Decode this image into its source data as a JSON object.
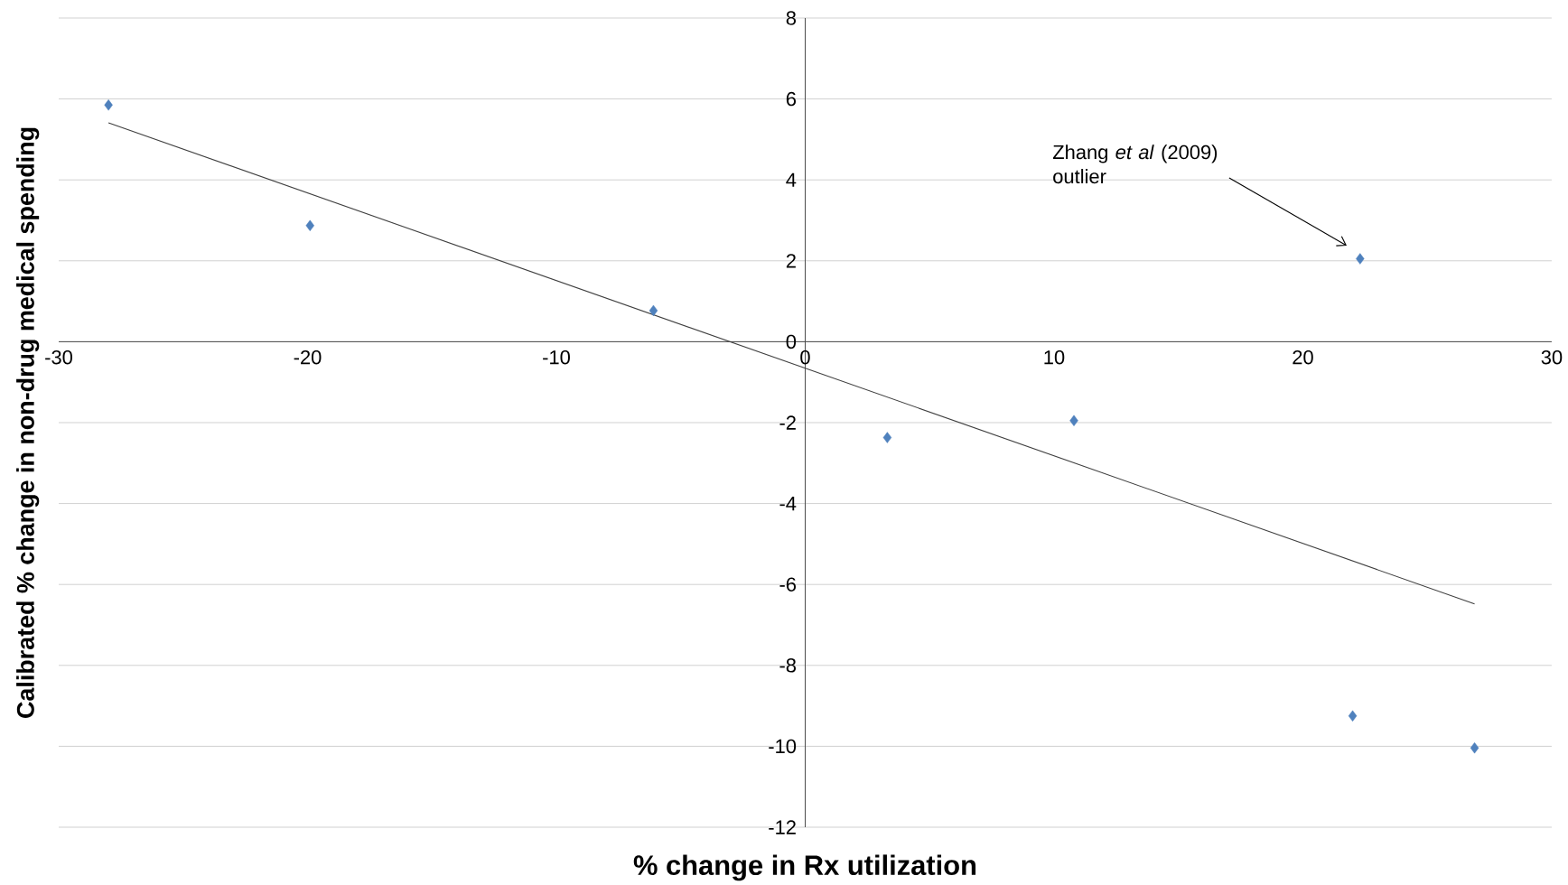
{
  "chart_data": {
    "type": "scatter",
    "xlabel": "% change in Rx utilization",
    "ylabel": "Calibrated % change in non-drug medical spending",
    "series": [
      {
        "color": "#4f81bd",
        "marker": "diamond",
        "x": [
          -28.0,
          -19.9,
          -6.1,
          3.3,
          10.8,
          22.3,
          22.0,
          26.9
        ],
        "values": [
          5.85,
          2.87,
          0.77,
          -2.37,
          -1.95,
          2.05,
          -9.25,
          -10.04
        ]
      },
      {
        "type": "line",
        "color": "#404040",
        "x": [
          -28.0,
          26.9
        ],
        "values": [
          5.41,
          -6.48
        ]
      }
    ],
    "xlim": [
      -30,
      30
    ],
    "xticks": [
      -30,
      -20,
      -10,
      0,
      10,
      20,
      30
    ],
    "ylim": [
      -12,
      8
    ],
    "yticks": [
      -12,
      -10,
      -8,
      -6,
      -4,
      -2,
      0,
      2,
      4,
      6,
      8
    ],
    "grid": "y",
    "annotations": [
      "Zhang *et al* (2009) outlier"
    ]
  }
}
